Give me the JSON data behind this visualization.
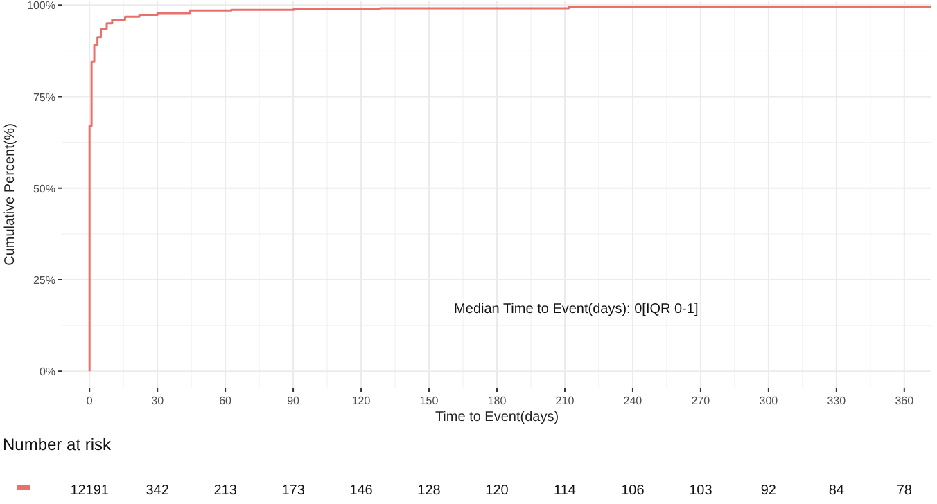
{
  "chart_data": {
    "type": "step",
    "xlabel": "Time to Event(days)",
    "ylabel": "Cumulative Percent(%)",
    "x": [
      0,
      0,
      0.9,
      2.1,
      3.5,
      5,
      7.6,
      10,
      15.7,
      22,
      30,
      44.3,
      62.7,
      90.3,
      128.4,
      211.7,
      325.5,
      372
    ],
    "series": [
      {
        "color": "#e8716b",
        "values": [
          0,
          67,
          84.5,
          89.1,
          91.2,
          93.5,
          95,
          96,
          96.8,
          97.3,
          97.8,
          98.5,
          98.7,
          99,
          99.1,
          99.4,
          99.6,
          99.6
        ]
      }
    ],
    "xlim": [
      -12,
      372
    ],
    "xticks": [
      0,
      30,
      60,
      90,
      120,
      150,
      180,
      210,
      240,
      270,
      300,
      330,
      360
    ],
    "ylim": [
      -4.5,
      101
    ],
    "yticks": [
      {
        "value": 0,
        "label": "0%"
      },
      {
        "value": 25,
        "label": "25%"
      },
      {
        "value": 50,
        "label": "50%"
      },
      {
        "value": 75,
        "label": "75%"
      },
      {
        "value": 100,
        "label": "100%"
      }
    ],
    "grid": true,
    "line_style": "solid",
    "annotations": [
      "Median Time to Event(days): 0[IQR 0-1]",
      "Number at risk",
      "12191",
      "342",
      "213",
      "173",
      "146",
      "128",
      "120",
      "114",
      "106",
      "103",
      "92",
      "84",
      "78"
    ]
  }
}
